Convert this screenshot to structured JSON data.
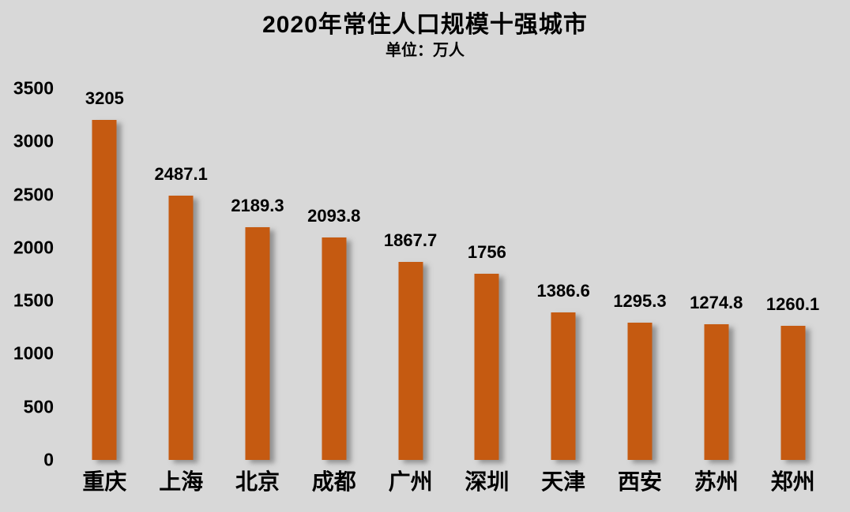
{
  "chart_data": {
    "type": "bar",
    "title": "2020年常住人口规模十强城市",
    "subtitle": "单位：万人",
    "categories": [
      "重庆",
      "上海",
      "北京",
      "成都",
      "广州",
      "深圳",
      "天津",
      "西安",
      "苏州",
      "郑州"
    ],
    "values": [
      3205,
      2487.1,
      2189.3,
      2093.8,
      1867.7,
      1756,
      1386.6,
      1295.3,
      1274.8,
      1260.1
    ],
    "value_labels": [
      "3205",
      "2487.1",
      "2189.3",
      "2093.8",
      "1867.7",
      "1756",
      "1386.6",
      "1295.3",
      "1274.8",
      "1260.1"
    ],
    "ylabel": "",
    "xlabel": "",
    "ylim": [
      0,
      3500
    ],
    "yticks": [
      0,
      500,
      1000,
      1500,
      2000,
      2500,
      3000,
      3500
    ],
    "grid": false,
    "legend": false,
    "bar_color": "#C55A11",
    "background_color": "#D8D8D8",
    "text_color": "#000000"
  }
}
